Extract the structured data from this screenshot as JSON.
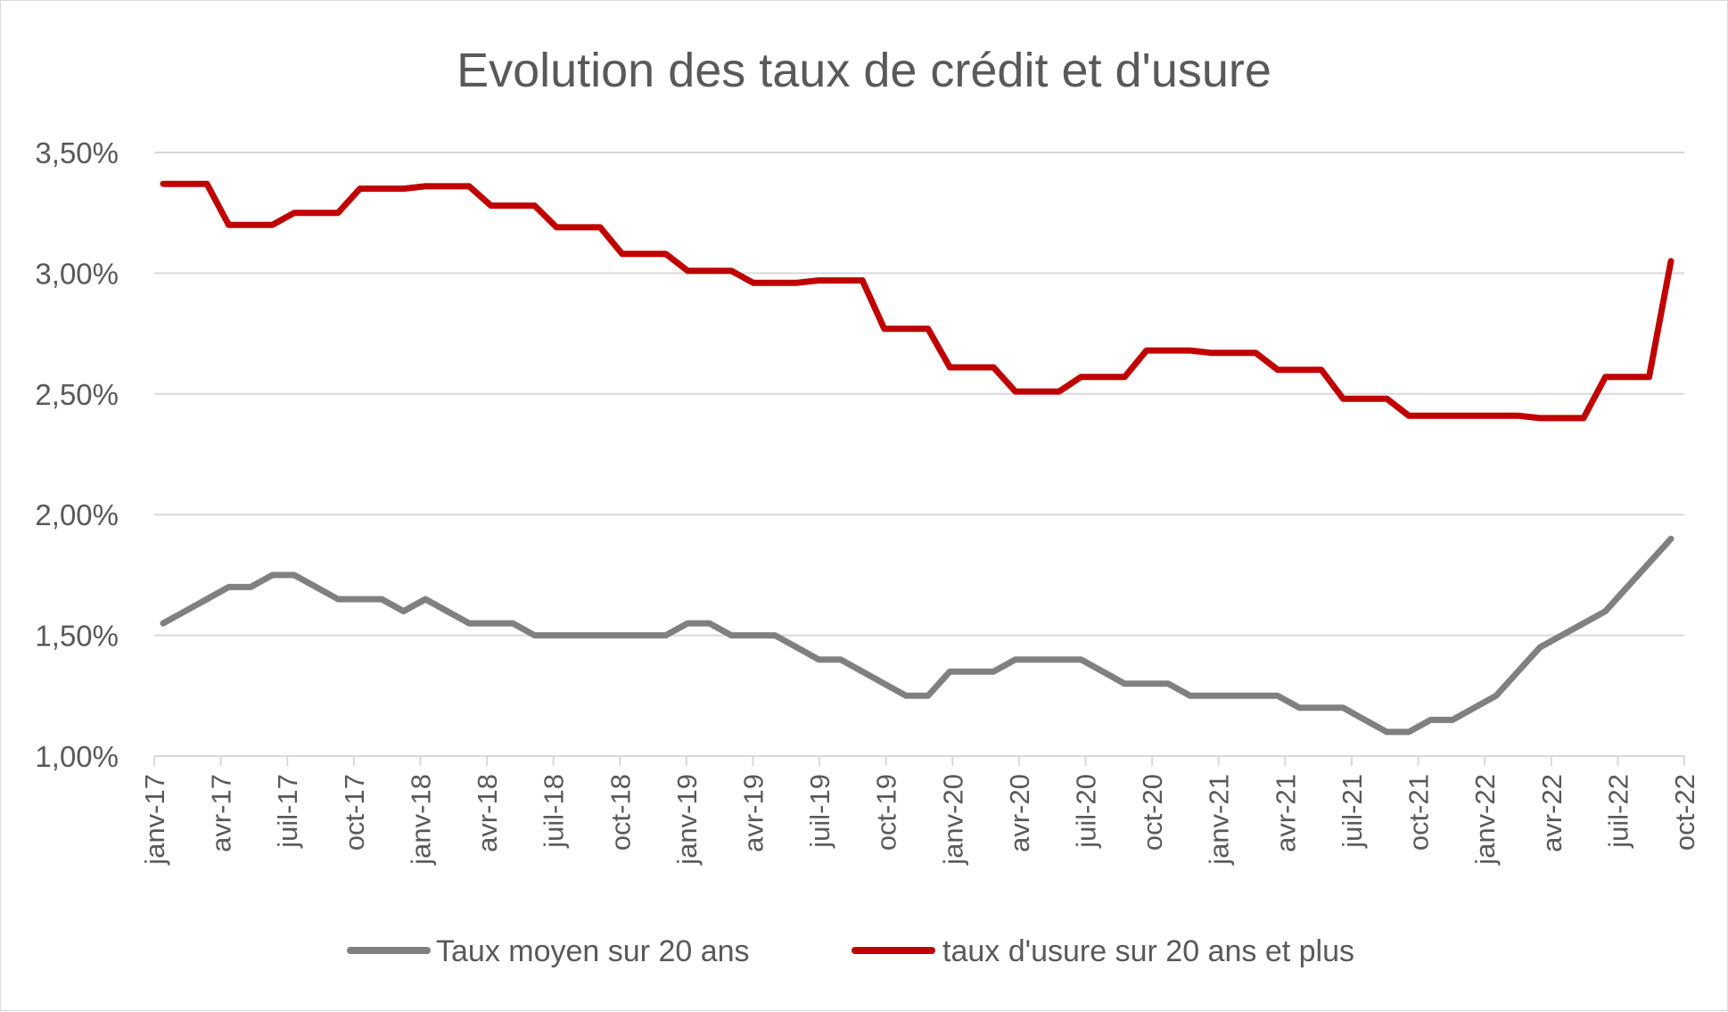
{
  "chart_data": {
    "type": "line",
    "title": "Evolution des taux de crédit et d'usure",
    "xlabel": "",
    "ylabel": "",
    "ylim": [
      1.0,
      3.5
    ],
    "yticks": [
      1.0,
      1.5,
      2.0,
      2.5,
      3.0,
      3.5
    ],
    "ytick_labels": [
      "1,00%",
      "1,50%",
      "2,00%",
      "2,50%",
      "3,00%",
      "3,50%"
    ],
    "x": [
      "janv-17",
      "févr-17",
      "mars-17",
      "avr-17",
      "mai-17",
      "juin-17",
      "juil-17",
      "août-17",
      "sept-17",
      "oct-17",
      "nov-17",
      "déc-17",
      "janv-18",
      "févr-18",
      "mars-18",
      "avr-18",
      "mai-18",
      "juin-18",
      "juil-18",
      "août-18",
      "sept-18",
      "oct-18",
      "nov-18",
      "déc-18",
      "janv-19",
      "févr-19",
      "mars-19",
      "avr-19",
      "mai-19",
      "juin-19",
      "juil-19",
      "août-19",
      "sept-19",
      "oct-19",
      "nov-19",
      "déc-19",
      "janv-20",
      "févr-20",
      "mars-20",
      "avr-20",
      "mai-20",
      "juin-20",
      "juil-20",
      "août-20",
      "sept-20",
      "oct-20",
      "nov-20",
      "déc-20",
      "janv-21",
      "févr-21",
      "mars-21",
      "avr-21",
      "mai-21",
      "juin-21",
      "juil-21",
      "août-21",
      "sept-21",
      "oct-21",
      "nov-21",
      "déc-21",
      "janv-22",
      "févr-22",
      "mars-22",
      "avr-22",
      "mai-22",
      "juin-22",
      "juil-22",
      "août-22",
      "sept-22",
      "oct-22"
    ],
    "xtick_labels": [
      "janv-17",
      "avr-17",
      "juil-17",
      "oct-17",
      "janv-18",
      "avr-18",
      "juil-18",
      "oct-18",
      "janv-19",
      "avr-19",
      "juil-19",
      "oct-19",
      "janv-20",
      "avr-20",
      "juil-20",
      "oct-20",
      "janv-21",
      "avr-21",
      "juil-21",
      "oct-21",
      "janv-22",
      "avr-22",
      "juil-22",
      "oct-22"
    ],
    "grid": true,
    "legend_position": "bottom",
    "series": [
      {
        "name": "Taux moyen sur 20 ans",
        "color": "#808080",
        "values": [
          1.55,
          1.6,
          1.65,
          1.7,
          1.7,
          1.75,
          1.75,
          1.7,
          1.65,
          1.65,
          1.65,
          1.6,
          1.65,
          1.6,
          1.55,
          1.55,
          1.55,
          1.5,
          1.5,
          1.5,
          1.5,
          1.5,
          1.5,
          1.5,
          1.55,
          1.55,
          1.5,
          1.5,
          1.5,
          1.45,
          1.4,
          1.4,
          1.35,
          1.3,
          1.25,
          1.25,
          1.35,
          1.35,
          1.35,
          1.4,
          1.4,
          1.4,
          1.4,
          1.35,
          1.3,
          1.3,
          1.3,
          1.25,
          1.25,
          1.25,
          1.25,
          1.25,
          1.2,
          1.2,
          1.2,
          1.15,
          1.1,
          1.1,
          1.15,
          1.15,
          1.2,
          1.25,
          1.35,
          1.45,
          1.5,
          1.55,
          1.6,
          1.7,
          1.8,
          1.9
        ]
      },
      {
        "name": "taux d'usure sur 20 ans et plus",
        "color": "#c00000",
        "values": [
          3.37,
          3.37,
          3.37,
          3.2,
          3.2,
          3.2,
          3.25,
          3.25,
          3.25,
          3.35,
          3.35,
          3.35,
          3.36,
          3.36,
          3.36,
          3.28,
          3.28,
          3.28,
          3.19,
          3.19,
          3.19,
          3.08,
          3.08,
          3.08,
          3.01,
          3.01,
          3.01,
          2.96,
          2.96,
          2.96,
          2.97,
          2.97,
          2.97,
          2.77,
          2.77,
          2.77,
          2.61,
          2.61,
          2.61,
          2.51,
          2.51,
          2.51,
          2.57,
          2.57,
          2.57,
          2.68,
          2.68,
          2.68,
          2.67,
          2.67,
          2.67,
          2.6,
          2.6,
          2.6,
          2.48,
          2.48,
          2.48,
          2.41,
          2.41,
          2.41,
          2.41,
          2.41,
          2.41,
          2.4,
          2.4,
          2.4,
          2.57,
          2.57,
          2.57,
          3.05
        ]
      }
    ]
  }
}
